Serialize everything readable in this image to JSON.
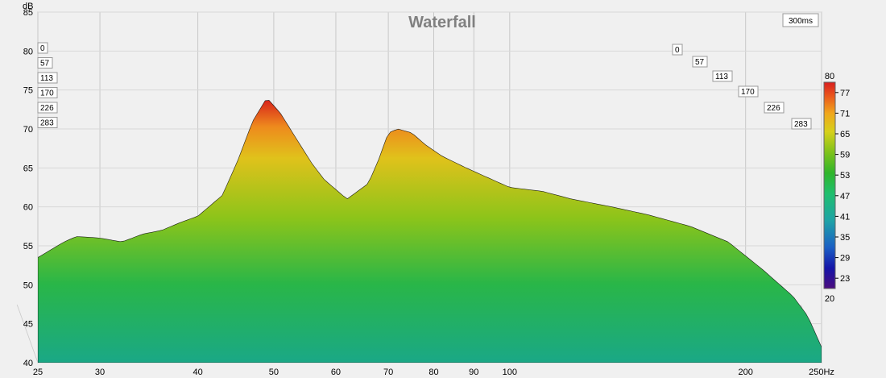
{
  "chart_data": {
    "type": "waterfall",
    "title": "Waterfall",
    "ylabel": "dB",
    "time_window": "300ms",
    "x_axis": {
      "scale": "log",
      "range_hz": [
        25,
        250
      ],
      "ticks": [
        25,
        30,
        40,
        50,
        60,
        70,
        80,
        90,
        100,
        200,
        250
      ],
      "tick_labels": [
        "25",
        "30",
        "40",
        "50",
        "60",
        "70",
        "80",
        "90",
        "100",
        "200",
        "250Hz"
      ]
    },
    "y_axis": {
      "range": [
        40,
        85
      ],
      "ticks": [
        40,
        45,
        50,
        55,
        60,
        65,
        70,
        75,
        80,
        85
      ]
    },
    "time_slices_ms": [
      0,
      57,
      113,
      170,
      226,
      283
    ],
    "color_scale": {
      "min": 20,
      "max": 80,
      "labels": [
        77,
        71,
        65,
        59,
        53,
        47,
        41,
        35,
        29,
        23
      ]
    },
    "front_slice_spl": {
      "freq_hz": [
        25,
        27,
        28,
        30,
        32,
        34,
        36,
        38,
        40,
        43,
        45,
        47,
        49,
        51,
        54,
        56,
        58,
        62,
        66,
        68,
        70,
        72,
        75,
        78,
        82,
        88,
        95,
        100,
        110,
        120,
        135,
        150,
        170,
        190,
        210,
        230,
        240,
        250
      ],
      "spl_db": [
        53.5,
        55.5,
        56.2,
        56,
        55.5,
        56.5,
        57,
        58,
        58.8,
        61.5,
        66,
        71,
        74,
        72,
        68,
        65.5,
        63.5,
        61,
        63,
        66,
        69.5,
        70,
        69.5,
        68,
        66.5,
        65,
        63.5,
        62.5,
        62,
        61,
        60,
        59,
        57.5,
        55.5,
        52,
        48.5,
        46,
        42
      ]
    },
    "colors": {
      "background": "#f0f0f0",
      "grid": "#c8c8c8",
      "ridge_line": "#000000",
      "palette_stops": [
        "#4b0c7e",
        "#1414a8",
        "#1a5fc4",
        "#1ea3a6",
        "#1fbf6e",
        "#2fb52a",
        "#7ec21a",
        "#d6d01a",
        "#f0a61c",
        "#ea5a1c",
        "#d81e1e"
      ]
    }
  }
}
